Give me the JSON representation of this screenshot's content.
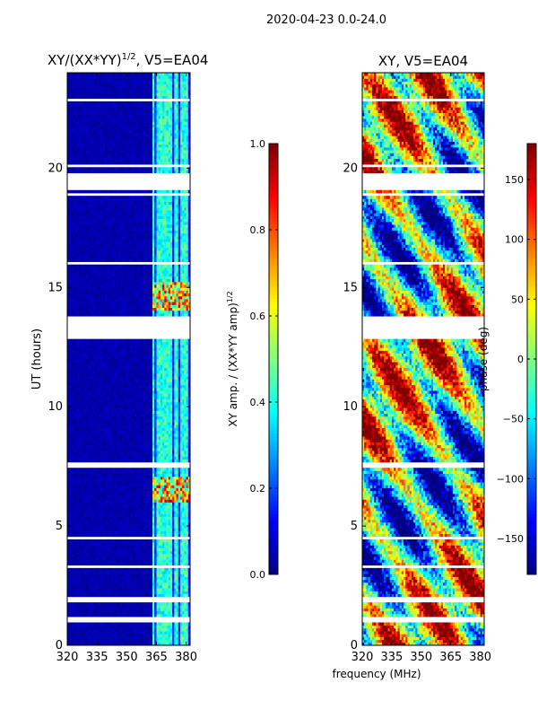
{
  "suptitle": "2020-04-23 0.0-24.0",
  "shared_xlabel": "frequency (MHz)",
  "chart_data": [
    {
      "type": "heatmap",
      "title_main": "XY/(XX*YY)",
      "title_sup": "1/2",
      "title_tail": ", V5=EA04",
      "ylabel": "UT (hours)",
      "xlim": [
        320,
        382
      ],
      "ylim": [
        0,
        24
      ],
      "xticks": [
        320,
        335,
        350,
        365,
        380
      ],
      "yticks": [
        0,
        5,
        10,
        15,
        20
      ],
      "colorbar": {
        "label_main": "XY amp. / (XX*YY amp)",
        "label_sup": "1/2",
        "vmin": 0.0,
        "vmax": 1.0,
        "ticks": [
          "0.0",
          "0.2",
          "0.4",
          "0.6",
          "0.8",
          "1.0"
        ],
        "tick_values": [
          0.0,
          0.2,
          0.4,
          0.6,
          0.8,
          1.0
        ],
        "colormap": "jet"
      },
      "gaps_hours": [
        [
          19.1,
          19.8
        ],
        [
          20.0,
          20.2
        ],
        [
          12.9,
          13.8
        ],
        [
          7.5,
          7.7
        ],
        [
          4.4,
          4.6
        ],
        [
          3.2,
          3.4
        ],
        [
          1.8,
          2.0
        ],
        [
          1.0,
          1.2
        ],
        [
          18.9,
          19.0
        ],
        [
          16.0,
          16.1
        ],
        [
          22.8,
          22.9
        ],
        [
          11.0,
          11.05
        ],
        [
          6.1,
          6.15
        ]
      ],
      "high_bands": [
        [
          14.0,
          15.2
        ],
        [
          6.0,
          7.1
        ]
      ],
      "signal_channels_mhz": [
        363,
        366,
        368,
        370,
        372,
        375,
        378,
        380
      ]
    },
    {
      "type": "heatmap",
      "title": "XY, V5=EA04",
      "xlim": [
        320,
        382
      ],
      "ylim": [
        0,
        24
      ],
      "xticks": [
        320,
        335,
        350,
        365,
        380
      ],
      "yticks": [
        0,
        5,
        10,
        15,
        20
      ],
      "colorbar": {
        "label": "phase (deg)",
        "vmin": -180,
        "vmax": 180,
        "ticks": [
          "150",
          "100",
          "50",
          "0",
          "−50",
          "−100",
          "−150"
        ],
        "tick_values": [
          150,
          100,
          50,
          0,
          -50,
          -100,
          -150
        ],
        "colormap": "jet"
      },
      "gaps_hours": [
        [
          19.1,
          19.8
        ],
        [
          20.0,
          20.2
        ],
        [
          12.9,
          13.8
        ],
        [
          7.5,
          7.7
        ],
        [
          4.4,
          4.6
        ],
        [
          3.2,
          3.4
        ],
        [
          1.8,
          2.0
        ],
        [
          1.0,
          1.2
        ],
        [
          18.9,
          19.0
        ],
        [
          16.0,
          16.1
        ],
        [
          22.8,
          22.9
        ],
        [
          11.0,
          11.05
        ],
        [
          6.1,
          6.15
        ]
      ]
    }
  ]
}
